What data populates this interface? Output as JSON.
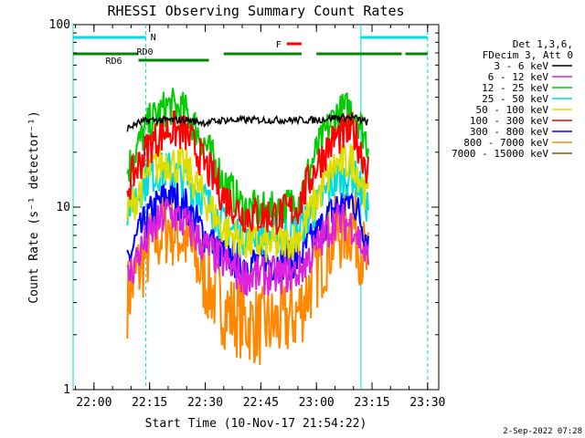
{
  "chart_data": {
    "type": "line",
    "title": "RHESSI Observing Summary Count Rates",
    "xlabel": "Start Time (10-Nov-17 21:54:22)",
    "ylabel": "Count Rate (s⁻¹ detector⁻¹)",
    "yscale": "log",
    "ylim": [
      1,
      100
    ],
    "xlim": [
      "21:54:22",
      "23:33:00"
    ],
    "x_ticks": [
      "22:00",
      "22:15",
      "22:30",
      "22:45",
      "23:00",
      "23:15",
      "23:30"
    ],
    "y_ticks": [
      "1",
      "10",
      "100"
    ],
    "footer_date": "2-Sep-2022 07:28",
    "legend": {
      "placement": "right",
      "header": [
        "Det 1,3,6,",
        "FDecim 3, Att 0"
      ]
    },
    "series": [
      {
        "name": "3 - 6 keV",
        "color": "#000000",
        "x": [
          "22:09",
          "22:12",
          "22:15",
          "22:20",
          "22:25",
          "22:30",
          "22:35",
          "22:40",
          "22:45",
          "22:50",
          "22:55",
          "23:00",
          "23:05",
          "23:10",
          "23:14"
        ],
        "values": [
          27,
          29,
          30,
          30,
          30,
          29,
          30,
          30,
          30,
          30,
          30,
          30,
          31,
          31,
          29
        ]
      },
      {
        "name": "6 - 12 keV",
        "color": "#dd22dd",
        "x": [
          "22:09",
          "22:12",
          "22:15",
          "22:20",
          "22:25",
          "22:30",
          "22:35",
          "22:40",
          "22:45",
          "22:50",
          "22:55",
          "23:00",
          "23:05",
          "23:10",
          "23:14"
        ],
        "values": [
          4,
          5.5,
          7,
          9.5,
          8,
          6,
          5,
          4.2,
          4.2,
          4.2,
          4.4,
          6,
          8.5,
          8,
          5
        ]
      },
      {
        "name": "12 - 25 keV",
        "color": "#00cc00",
        "x": [
          "22:09",
          "22:12",
          "22:15",
          "22:20",
          "22:25",
          "22:30",
          "22:35",
          "22:40",
          "22:45",
          "22:50",
          "22:55",
          "23:00",
          "23:05",
          "23:10",
          "23:14"
        ],
        "values": [
          16,
          22,
          29,
          36,
          33,
          22,
          14,
          10,
          9.5,
          9.5,
          11,
          20,
          32,
          35,
          22
        ]
      },
      {
        "name": "25 - 50 keV",
        "color": "#00dddd",
        "x": [
          "22:09",
          "22:12",
          "22:15",
          "22:20",
          "22:25",
          "22:30",
          "22:35",
          "22:40",
          "22:45",
          "22:50",
          "22:55",
          "23:00",
          "23:05",
          "23:10",
          "23:14"
        ],
        "values": [
          10,
          12,
          15,
          16,
          14,
          11,
          8,
          7,
          7,
          7,
          7.5,
          10,
          14,
          15,
          10
        ]
      },
      {
        "name": "50 - 100 keV",
        "color": "#dddd00",
        "x": [
          "22:09",
          "22:12",
          "22:15",
          "22:20",
          "22:25",
          "22:30",
          "22:35",
          "22:40",
          "22:45",
          "22:50",
          "22:55",
          "23:00",
          "23:05",
          "23:10",
          "23:14"
        ],
        "values": [
          9,
          12,
          16,
          18,
          16,
          11,
          7.5,
          6.5,
          6.2,
          6.2,
          6.8,
          11,
          17,
          18,
          11
        ]
      },
      {
        "name": "100 - 300 keV",
        "color": "#ff0000",
        "x": [
          "22:09",
          "22:12",
          "22:15",
          "22:20",
          "22:25",
          "22:30",
          "22:35",
          "22:40",
          "22:45",
          "22:50",
          "22:55",
          "23:00",
          "23:05",
          "23:10",
          "23:14"
        ],
        "values": [
          13,
          17,
          22,
          27,
          25,
          17,
          11.5,
          9.2,
          9,
          9,
          10,
          17,
          24,
          26,
          16
        ]
      },
      {
        "name": "300 - 800 keV",
        "color": "#0000ff",
        "x": [
          "22:09",
          "22:12",
          "22:15",
          "22:20",
          "22:25",
          "22:30",
          "22:35",
          "22:40",
          "22:45",
          "22:50",
          "22:55",
          "23:00",
          "23:05",
          "23:10",
          "23:14"
        ],
        "values": [
          5,
          7,
          9,
          12,
          10,
          7,
          5.5,
          5,
          5,
          5,
          5.2,
          7,
          10,
          11,
          6.5
        ]
      },
      {
        "name": "800 - 7000 keV",
        "color": "#ff8800",
        "x": [
          "22:09",
          "22:12",
          "22:15",
          "22:20",
          "22:25",
          "22:30",
          "22:35",
          "22:40",
          "22:45",
          "22:50",
          "22:55",
          "23:00",
          "23:05",
          "23:10",
          "23:14"
        ],
        "values": [
          3.2,
          4.5,
          6,
          8,
          6.5,
          4,
          2.8,
          2.4,
          2.2,
          2.3,
          2.6,
          4.5,
          7,
          8,
          4.5
        ]
      },
      {
        "name": "7000 - 15000 keV",
        "color": "#806000",
        "x": [],
        "values": []
      }
    ],
    "annotations": [
      {
        "label": "N",
        "color": "#00dddd",
        "row": "top",
        "spans": [
          [
            "21:54:22",
            "22:14"
          ],
          [
            "23:12",
            "23:30"
          ]
        ]
      },
      {
        "label": "RD0",
        "color": "#008800",
        "row": "second",
        "spans": [
          [
            "21:54:22",
            "22:12"
          ],
          [
            "22:35",
            "22:56"
          ],
          [
            "23:00",
            "23:23"
          ],
          [
            "23:24",
            "23:30"
          ]
        ]
      },
      {
        "label": "RD6",
        "color": "#008800",
        "row": "third",
        "spans": [
          [
            "22:12",
            "22:31"
          ]
        ]
      },
      {
        "label": "F",
        "color": "#ff0000",
        "row": "flare",
        "spans": [
          [
            "22:52",
            "22:56"
          ]
        ]
      }
    ],
    "vertical_markers": [
      {
        "x": "21:54:22",
        "color": "#00dddd",
        "style": "solid"
      },
      {
        "x": "22:14",
        "color": "#00dddd",
        "style": "dashed"
      },
      {
        "x": "23:12",
        "color": "#00dddd",
        "style": "solid"
      },
      {
        "x": "23:30",
        "color": "#00dddd",
        "style": "dashed"
      }
    ],
    "data_gaps": [
      [
        "21:54:22",
        "22:09"
      ],
      [
        "23:14",
        "23:30"
      ]
    ],
    "grid": false
  }
}
